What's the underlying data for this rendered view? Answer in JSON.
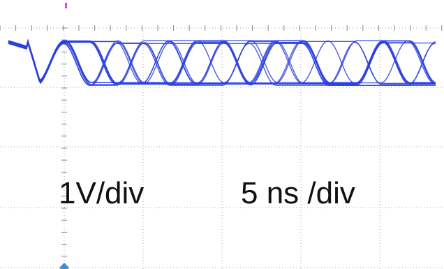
{
  "labels": {
    "vertical_scale": "1V/div",
    "time_scale": "5 ns /div"
  }
}
